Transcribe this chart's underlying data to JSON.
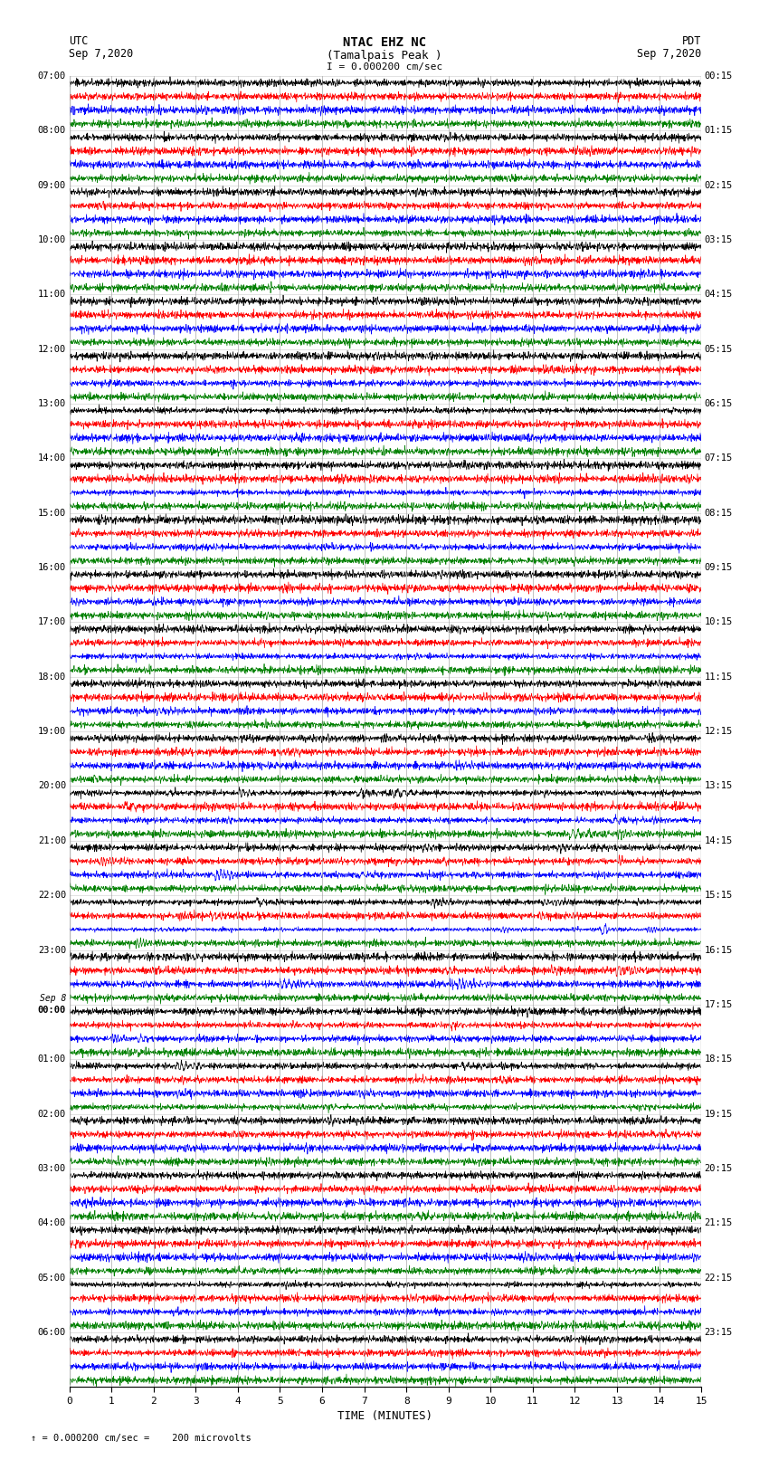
{
  "title_line1": "NTAC EHZ NC",
  "title_line2": "(Tamalpais Peak )",
  "title_line3": "I = 0.000200 cm/sec",
  "left_header_line1": "UTC",
  "left_header_line2": "Sep 7,2020",
  "right_header_line1": "PDT",
  "right_header_line2": "Sep 7,2020",
  "footer": "= 0.000200 cm/sec =    200 microvolts",
  "scale_prefix": "↑",
  "xlabel": "TIME (MINUTES)",
  "x_ticks": [
    0,
    1,
    2,
    3,
    4,
    5,
    6,
    7,
    8,
    9,
    10,
    11,
    12,
    13,
    14,
    15
  ],
  "track_colors": [
    "black",
    "red",
    "blue",
    "green"
  ],
  "background_color": "#ffffff",
  "grid_color": "#999999",
  "fig_width": 8.5,
  "fig_height": 16.13,
  "dpi": 100,
  "n_groups": 24,
  "n_tracks": 4,
  "utc_hours_seq": [
    7,
    8,
    9,
    10,
    11,
    12,
    13,
    14,
    15,
    16,
    17,
    18,
    19,
    20,
    21,
    22,
    23,
    0,
    1,
    2,
    3,
    4,
    5,
    6
  ],
  "pdt_hours_seq": [
    0,
    1,
    2,
    3,
    4,
    5,
    6,
    7,
    8,
    9,
    10,
    11,
    12,
    13,
    14,
    15,
    16,
    17,
    18,
    19,
    20,
    21,
    22,
    23
  ],
  "sep8_group_idx": 17,
  "noise_levels": [
    0.12,
    0.12,
    0.12,
    0.12,
    0.12,
    0.12,
    0.12,
    0.18,
    0.22,
    0.25,
    0.28,
    0.3,
    0.32,
    0.35,
    0.38,
    0.4,
    0.38,
    0.35,
    0.32,
    0.3,
    0.28,
    0.25,
    0.22,
    0.2
  ],
  "event_rates": [
    0.3,
    0.3,
    0.3,
    0.3,
    0.3,
    0.3,
    0.3,
    0.8,
    1.2,
    1.5,
    1.8,
    2.0,
    2.5,
    3.0,
    3.5,
    4.0,
    3.5,
    3.0,
    2.5,
    2.0,
    1.8,
    1.5,
    1.2,
    1.0
  ],
  "event_amp_scales": [
    0.3,
    0.3,
    0.3,
    0.3,
    0.3,
    0.3,
    0.3,
    0.5,
    0.7,
    0.9,
    1.1,
    1.3,
    1.5,
    1.8,
    2.0,
    2.2,
    2.0,
    1.8,
    1.5,
    1.3,
    1.1,
    0.9,
    0.7,
    0.6
  ]
}
